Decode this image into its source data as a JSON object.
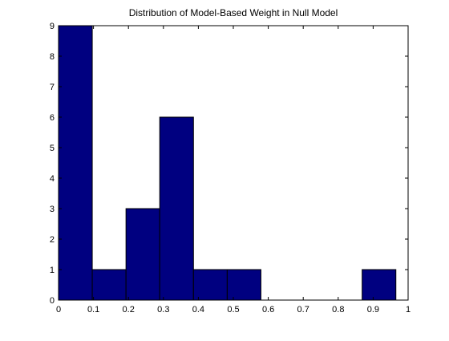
{
  "chart_data": {
    "type": "bar",
    "title": "Distribution of Model-Based Weight in Null Model",
    "xlabel": "",
    "ylabel": "",
    "xlim": [
      0,
      1
    ],
    "ylim": [
      0,
      9
    ],
    "grid": false,
    "bins": [
      {
        "x_start": 0.0,
        "x_end": 0.0965,
        "value": 9
      },
      {
        "x_start": 0.0965,
        "x_end": 0.193,
        "value": 1
      },
      {
        "x_start": 0.193,
        "x_end": 0.2895,
        "value": 3
      },
      {
        "x_start": 0.2895,
        "x_end": 0.386,
        "value": 6
      },
      {
        "x_start": 0.386,
        "x_end": 0.4825,
        "value": 1
      },
      {
        "x_start": 0.4825,
        "x_end": 0.579,
        "value": 1
      },
      {
        "x_start": 0.579,
        "x_end": 0.6755,
        "value": 0
      },
      {
        "x_start": 0.6755,
        "x_end": 0.772,
        "value": 0
      },
      {
        "x_start": 0.772,
        "x_end": 0.8685,
        "value": 0
      },
      {
        "x_start": 0.8685,
        "x_end": 0.965,
        "value": 1
      }
    ],
    "x_ticks": [
      "0",
      "0.1",
      "0.2",
      "0.3",
      "0.4",
      "0.5",
      "0.6",
      "0.7",
      "0.8",
      "0.9",
      "1"
    ],
    "x_tick_values": [
      0,
      0.1,
      0.2,
      0.3,
      0.4,
      0.5,
      0.6,
      0.7,
      0.8,
      0.9,
      1
    ],
    "y_ticks": [
      "0",
      "1",
      "2",
      "3",
      "4",
      "5",
      "6",
      "7",
      "8",
      "9"
    ],
    "y_tick_values": [
      0,
      1,
      2,
      3,
      4,
      5,
      6,
      7,
      8,
      9
    ],
    "colors": {
      "bar_fill": "#000080",
      "bar_stroke": "#000000",
      "axis": "#000000",
      "background": "#ffffff"
    }
  }
}
